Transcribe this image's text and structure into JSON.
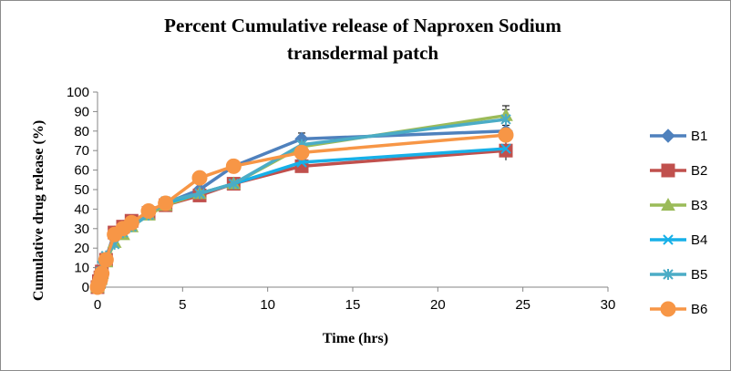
{
  "chart_data": {
    "type": "line",
    "title_line1": "Percent Cumulative release of Naproxen Sodium",
    "title_line2": "transdermal patch",
    "xlabel": "Time (hrs)",
    "ylabel": "Cumulative drug release (%)",
    "xlim": [
      0,
      30
    ],
    "ylim": [
      0,
      100
    ],
    "xticks": [
      0,
      5,
      10,
      15,
      20,
      25,
      30
    ],
    "yticks": [
      0,
      10,
      20,
      30,
      40,
      50,
      60,
      70,
      80,
      90,
      100
    ],
    "grid": false,
    "legend_position": "right",
    "x": [
      0,
      0.08,
      0.17,
      0.25,
      0.5,
      1,
      1.5,
      2,
      3,
      4,
      6,
      8,
      12,
      24
    ],
    "series": [
      {
        "name": "B1",
        "color": "#4F81BD",
        "marker": "diamond",
        "values": [
          0,
          3,
          6,
          9,
          15,
          28,
          31,
          33,
          38,
          43,
          50,
          62,
          76,
          80
        ]
      },
      {
        "name": "B2",
        "color": "#C0504D",
        "marker": "square",
        "values": [
          0,
          3,
          5,
          8,
          14,
          28,
          31,
          34,
          38,
          42,
          47,
          53,
          62,
          70
        ]
      },
      {
        "name": "B3",
        "color": "#9BBB59",
        "marker": "triangle",
        "values": [
          0,
          2,
          4,
          7,
          13,
          23,
          27,
          31,
          37,
          42,
          48,
          53,
          72,
          88
        ]
      },
      {
        "name": "B4",
        "color": "#17B0E8",
        "marker": "x",
        "values": [
          0,
          2,
          5,
          8,
          14,
          27,
          30,
          33,
          38,
          43,
          48,
          53,
          64,
          71
        ]
      },
      {
        "name": "B5",
        "color": "#4BACC6",
        "marker": "star",
        "values": [
          0,
          4,
          8,
          11,
          16,
          22,
          28,
          31,
          37,
          44,
          48,
          53,
          73,
          86
        ]
      },
      {
        "name": "B6",
        "color": "#F79646",
        "marker": "circle",
        "values": [
          0,
          2,
          4,
          7,
          14,
          27,
          30,
          33,
          39,
          43,
          56,
          62,
          69,
          78
        ]
      }
    ],
    "error_bars": {
      "12": 3,
      "24": 5
    }
  }
}
